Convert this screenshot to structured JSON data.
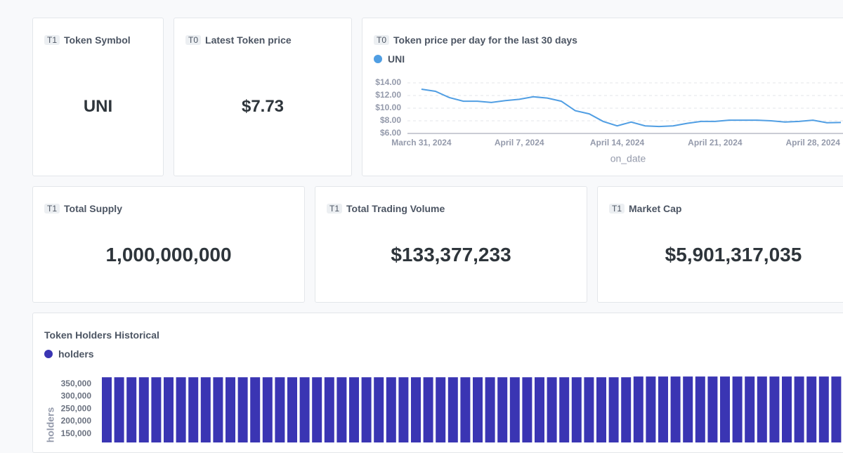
{
  "cards": [
    {
      "badge": "T1",
      "title": "Token Symbol",
      "value": "UNI"
    },
    {
      "badge": "T0",
      "title": "Latest Token price",
      "value": "$7.73"
    },
    {
      "badge": "T1",
      "title": "Total Supply",
      "value": "1,000,000,000"
    },
    {
      "badge": "T1",
      "title": "Total Trading Volume",
      "value": "$133,377,233"
    },
    {
      "badge": "T1",
      "title": "Market Cap",
      "value": "$5,901,317,035"
    }
  ],
  "charts": [
    {
      "type": "line",
      "badge": "T0",
      "title": "Token price per day for the last 30 days",
      "x": [
        "2024-03-31",
        "2024-04-01",
        "2024-04-02",
        "2024-04-03",
        "2024-04-04",
        "2024-04-05",
        "2024-04-06",
        "2024-04-07",
        "2024-04-08",
        "2024-04-09",
        "2024-04-10",
        "2024-04-11",
        "2024-04-12",
        "2024-04-13",
        "2024-04-14",
        "2024-04-15",
        "2024-04-16",
        "2024-04-17",
        "2024-04-18",
        "2024-04-19",
        "2024-04-20",
        "2024-04-21",
        "2024-04-22",
        "2024-04-23",
        "2024-04-24",
        "2024-04-25",
        "2024-04-26",
        "2024-04-27",
        "2024-04-28",
        "2024-04-29",
        "2024-04-30"
      ],
      "series": [
        {
          "name": "UNI",
          "color": "#509ee3",
          "values": [
            13.0,
            12.67,
            11.67,
            11.1,
            11.1,
            10.9,
            11.2,
            11.4,
            11.8,
            11.6,
            11.1,
            9.6,
            9.1,
            7.9,
            7.2,
            7.8,
            7.2,
            7.1,
            7.2,
            7.6,
            7.9,
            7.9,
            8.1,
            8.1,
            8.1,
            8.0,
            7.8,
            7.9,
            8.1,
            7.7,
            7.73
          ]
        }
      ],
      "xlim": [
        "2024-03-30",
        "2024-04-30"
      ],
      "xticks": [
        {
          "value": "2024-03-31",
          "label": "March 31, 2024"
        },
        {
          "value": "2024-04-07",
          "label": "April 7, 2024"
        },
        {
          "value": "2024-04-14",
          "label": "April 14, 2024"
        },
        {
          "value": "2024-04-21",
          "label": "April 21, 2024"
        },
        {
          "value": "2024-04-28",
          "label": "April 28, 2024"
        }
      ],
      "ylim": [
        6,
        14
      ],
      "yticks": [
        {
          "value": 6,
          "label": "$6.00"
        },
        {
          "value": 8,
          "label": "$8.00"
        },
        {
          "value": 10,
          "label": "$10.00"
        },
        {
          "value": 12,
          "label": "$12.00"
        },
        {
          "value": 14,
          "label": "$14.00"
        }
      ],
      "xlabel": "on_date",
      "grid": true
    },
    {
      "type": "bar",
      "title": "Token Holders Historical",
      "categories": [
        null,
        null,
        null,
        null,
        null,
        null,
        null,
        null,
        null,
        null,
        null,
        null,
        null,
        null,
        null,
        null,
        null,
        null,
        null,
        null,
        null,
        null,
        null,
        null,
        null,
        null,
        null,
        null,
        null,
        null,
        null,
        null,
        null,
        null,
        null,
        null,
        null,
        null,
        null,
        null,
        null,
        null,
        null,
        null,
        null,
        null,
        null,
        null,
        null,
        null,
        null,
        null,
        null,
        null,
        null,
        null,
        null,
        null,
        null,
        null
      ],
      "series": [
        {
          "name": "holders",
          "color": "#3a35b3",
          "values": [
            377000,
            377000,
            377000,
            377000,
            377000,
            377000,
            377000,
            377000,
            377000,
            377000,
            377000,
            377000,
            377000,
            377000,
            377000,
            377000,
            377000,
            377000,
            377000,
            377000,
            377000,
            377000,
            377000,
            377000,
            377000,
            377000,
            377000,
            377000,
            377000,
            377000,
            377000,
            377000,
            377000,
            377000,
            377000,
            377000,
            377000,
            377000,
            377000,
            377000,
            377000,
            377000,
            377000,
            380000,
            380000,
            380000,
            380000,
            380000,
            380000,
            380000,
            380000,
            380000,
            380000,
            380000,
            380000,
            380000,
            380000,
            380000,
            380000,
            380000
          ]
        }
      ],
      "ylim": [
        0,
        400000
      ],
      "yticks": [
        {
          "value": 150000,
          "label": "150,000"
        },
        {
          "value": 200000,
          "label": "200,000"
        },
        {
          "value": 250000,
          "label": "250,000"
        },
        {
          "value": 300000,
          "label": "300,000"
        },
        {
          "value": 350000,
          "label": "350,000"
        }
      ],
      "ylabel": "holders"
    }
  ]
}
